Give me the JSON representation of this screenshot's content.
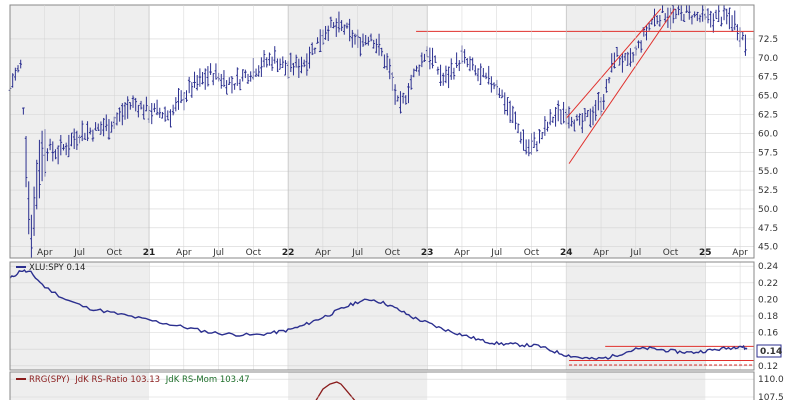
{
  "chart_data": [
    {
      "type": "ohlc",
      "panel": "price",
      "ylim": [
        43.5,
        77
      ],
      "y_ticks": [
        "45.0",
        "47.5",
        "50.0",
        "52.5",
        "55.0",
        "57.5",
        "60.0",
        "62.5",
        "65.0",
        "67.5",
        "70.0",
        "72.5"
      ],
      "x_month_labels": [
        "Apr",
        "Jul",
        "Oct",
        "Apr",
        "Jul",
        "Oct",
        "Apr",
        "Jul",
        "Oct",
        "Apr",
        "Jul",
        "Oct",
        "Apr",
        "Jul",
        "Oct",
        "Apr"
      ],
      "x_year_labels": [
        "21",
        "22",
        "23",
        "24",
        "25"
      ],
      "x_range": [
        2020.0,
        2025.35
      ],
      "shaded_years": [
        [
          2020.0,
          2021.0
        ],
        [
          2022.0,
          2023.0
        ],
        [
          2024.0,
          2025.0
        ]
      ],
      "series_color": "#2b2f8f",
      "key_points": {
        "x": [
          2020.0,
          2020.08,
          2020.15,
          2020.2,
          2020.25,
          2020.35,
          2020.5,
          2020.62,
          2020.75,
          2020.88,
          2021.0,
          2021.15,
          2021.3,
          2021.45,
          2021.6,
          2021.75,
          2021.9,
          2022.0,
          2022.12,
          2022.28,
          2022.4,
          2022.5,
          2022.6,
          2022.72,
          2022.8,
          2022.9,
          2023.0,
          2023.12,
          2023.25,
          2023.38,
          2023.5,
          2023.62,
          2023.72,
          2023.8,
          2023.9,
          2024.0,
          2024.1,
          2024.2,
          2024.28,
          2024.35,
          2024.45,
          2024.55,
          2024.62,
          2024.7,
          2024.78,
          2024.85,
          2024.92,
          2025.0,
          2025.1,
          2025.2,
          2025.25,
          2025.3
        ],
        "y": [
          66.5,
          69.0,
          45.0,
          55.0,
          58.0,
          57.5,
          60.0,
          60.5,
          61.5,
          64.0,
          63.0,
          62.5,
          66.0,
          68.0,
          66.5,
          68.5,
          70.0,
          68.5,
          69.5,
          74.0,
          74.0,
          72.0,
          73.0,
          69.0,
          63.0,
          67.5,
          71.0,
          67.0,
          70.0,
          67.5,
          66.5,
          62.0,
          58.0,
          59.0,
          62.0,
          63.0,
          61.0,
          63.0,
          65.0,
          70.5,
          69.0,
          72.5,
          75.0,
          76.0,
          75.5,
          76.0,
          75.5,
          75.0,
          75.5,
          75.0,
          73.5,
          71.5
        ]
      },
      "annotations": [
        {
          "type": "horizontal-line",
          "y": 73.5,
          "x_start": 2022.92,
          "x_end": 2025.35,
          "color": "#e0302c"
        },
        {
          "type": "channel-line",
          "points": [
            [
              2024.0,
              62.0
            ],
            [
              2024.68,
              76.5
            ]
          ],
          "color": "#e0302c"
        },
        {
          "type": "channel-line",
          "points": [
            [
              2024.02,
              56.0
            ],
            [
              2024.78,
              76.5
            ]
          ],
          "color": "#e0302c"
        }
      ]
    },
    {
      "type": "line",
      "panel": "relative-strength",
      "legend_label": "XLU:SPY 0.14",
      "last_value_badge": "0.14",
      "ylim": [
        0.115,
        0.245
      ],
      "y_ticks": [
        "0.24",
        "0.22",
        "0.20",
        "0.18",
        "0.16",
        "0.14",
        "0.12"
      ],
      "series_color": "#2b2f8f",
      "x": [
        2020.0,
        2020.08,
        2020.15,
        2020.25,
        2020.4,
        2020.55,
        2020.7,
        2020.85,
        2021.0,
        2021.15,
        2021.3,
        2021.45,
        2021.6,
        2021.75,
        2021.9,
        2022.0,
        2022.1,
        2022.2,
        2022.3,
        2022.4,
        2022.5,
        2022.6,
        2022.7,
        2022.8,
        2022.9,
        2023.0,
        2023.1,
        2023.2,
        2023.3,
        2023.4,
        2023.5,
        2023.6,
        2023.7,
        2023.8,
        2023.9,
        2024.0,
        2024.1,
        2024.2,
        2024.3,
        2024.4,
        2024.5,
        2024.6,
        2024.7,
        2024.8,
        2024.9,
        2025.0,
        2025.1,
        2025.2,
        2025.25,
        2025.3
      ],
      "values": [
        0.225,
        0.235,
        0.232,
        0.215,
        0.2,
        0.19,
        0.185,
        0.18,
        0.175,
        0.17,
        0.165,
        0.16,
        0.158,
        0.157,
        0.16,
        0.163,
        0.168,
        0.175,
        0.182,
        0.19,
        0.197,
        0.2,
        0.195,
        0.187,
        0.178,
        0.172,
        0.165,
        0.16,
        0.155,
        0.15,
        0.147,
        0.146,
        0.145,
        0.144,
        0.138,
        0.133,
        0.13,
        0.128,
        0.13,
        0.135,
        0.14,
        0.141,
        0.139,
        0.137,
        0.136,
        0.138,
        0.14,
        0.142,
        0.144,
        0.14
      ],
      "annotations": [
        {
          "type": "horizontal-line",
          "y": 0.1435,
          "x_start": 2024.28,
          "x_end": 2025.35,
          "color": "#e0302c"
        },
        {
          "type": "horizontal-line",
          "y": 0.1265,
          "x_start": 2024.02,
          "x_end": 2025.35,
          "color": "#e0302c"
        },
        {
          "type": "dashed-line",
          "y": 0.121,
          "x_start": 2024.02,
          "x_end": 2025.35,
          "color": "#e0302c"
        }
      ]
    },
    {
      "type": "line",
      "panel": "rrg",
      "legend_prefix": "RRG(SPY)",
      "legend_ratio": "JdK RS-Ratio 103.13",
      "legend_mom": "JdK RS-Mom 103.47",
      "ylim": [
        106.8,
        111.0
      ],
      "y_ticks": [
        "110.0",
        "107.5"
      ],
      "colors": {
        "ratio": "#8a1c1c",
        "mom": "#1e6f2b"
      },
      "x": [
        2022.2,
        2022.25,
        2022.3,
        2022.35,
        2022.38,
        2022.42,
        2022.48
      ],
      "values": [
        107.0,
        108.6,
        109.3,
        109.6,
        109.3,
        108.4,
        107.0
      ]
    }
  ],
  "colors": {
    "shade": "#eeeeee",
    "grid": "#d4d4d4",
    "axis": "#888888",
    "annotation": "#e0302c",
    "series": "#2b2f8f"
  }
}
